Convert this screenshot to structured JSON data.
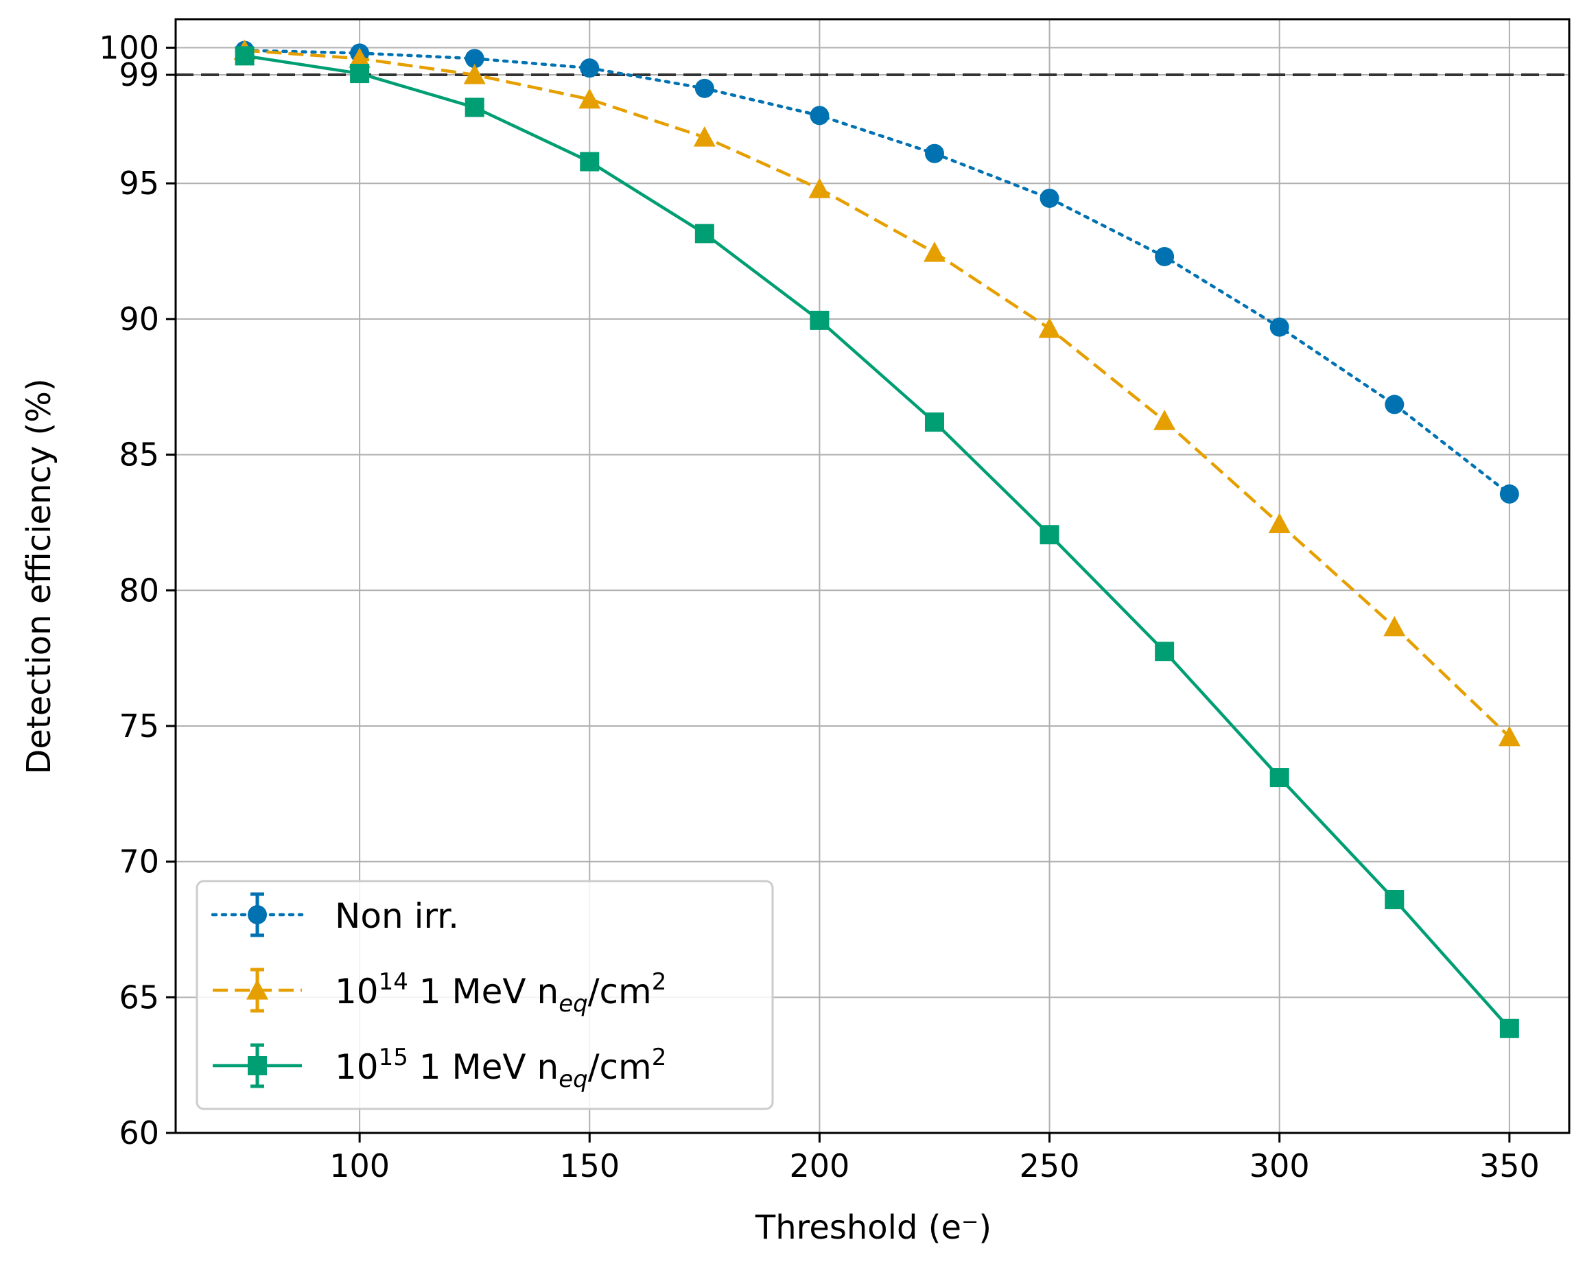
{
  "chart_data": {
    "type": "line",
    "title": "",
    "xlabel": "Threshold (e⁻)",
    "ylabel": "Detection efficiency (%)",
    "xlim": [
      60,
      363
    ],
    "ylim": [
      60,
      101.05
    ],
    "xticks": [
      100,
      150,
      200,
      250,
      300,
      350
    ],
    "yticks": [
      60,
      65,
      70,
      75,
      80,
      85,
      90,
      95,
      99,
      100
    ],
    "grid": true,
    "reference_line": {
      "y": 99,
      "style": "dashed",
      "color": "#333333"
    },
    "legend_position": "lower-left",
    "x": [
      75,
      100,
      125,
      150,
      175,
      200,
      225,
      250,
      275,
      300,
      325,
      350
    ],
    "series": [
      {
        "key": "nonirr",
        "name": "Non irr.",
        "color": "#0072b2",
        "linestyle": "dotted",
        "marker": "circle",
        "values": [
          99.9,
          99.8,
          99.6,
          99.25,
          98.5,
          97.5,
          96.1,
          94.45,
          92.3,
          89.7,
          86.85,
          83.55
        ]
      },
      {
        "key": "f14",
        "name": "10^14 1 MeV n_eq/cm^2",
        "label_parts": {
          "base": "10",
          "exp": "14",
          "mid": " 1 MeV n",
          "sub": "eq",
          "unit": "/cm",
          "unit_exp": "2"
        },
        "color": "#e69f00",
        "linestyle": "dashed",
        "marker": "triangle",
        "values": [
          99.9,
          99.6,
          99.0,
          98.1,
          96.7,
          94.8,
          92.45,
          89.65,
          86.25,
          82.45,
          78.65,
          74.6
        ]
      },
      {
        "key": "f15",
        "name": "10^15 1 MeV n_eq/cm^2",
        "label_parts": {
          "base": "10",
          "exp": "15",
          "mid": " 1 MeV n",
          "sub": "eq",
          "unit": "/cm",
          "unit_exp": "2"
        },
        "color": "#009e73",
        "linestyle": "solid",
        "marker": "square",
        "values": [
          99.7,
          99.05,
          97.8,
          95.8,
          93.15,
          89.95,
          86.2,
          82.05,
          77.75,
          73.1,
          68.6,
          63.85
        ]
      }
    ]
  }
}
